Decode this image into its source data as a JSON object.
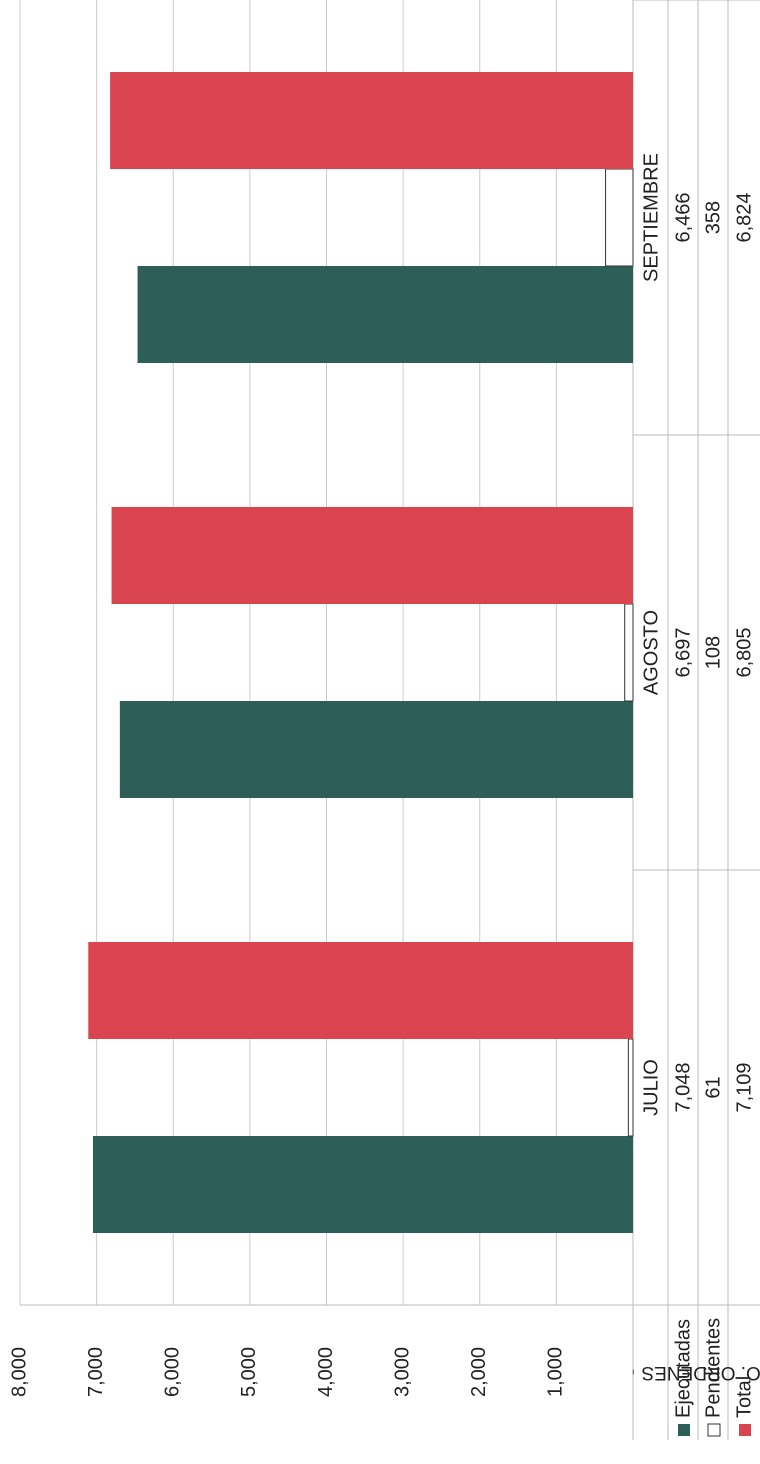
{
  "chart_data": {
    "type": "bar",
    "y_label": "NO. ORDENES",
    "y_label_color": "#d9444f",
    "categories": [
      "JULIO",
      "AGOSTO",
      "SEPTIEMBRE"
    ],
    "series": [
      {
        "name": "Ejecutadas",
        "color": "#2d5f58",
        "values": [
          7048,
          6697,
          6466
        ],
        "value_labels": [
          "7,048",
          "6,697",
          "6,466"
        ]
      },
      {
        "name": "Pendientes",
        "color": "#ffffff",
        "values": [
          61,
          108,
          358
        ]
      },
      {
        "name": "Total",
        "color": "#d9444f",
        "values": [
          7109,
          6805,
          6824
        ],
        "value_labels": [
          "7,109",
          "6,805",
          "6,824"
        ]
      }
    ],
    "ylim": [
      0,
      8000
    ],
    "yticks": [
      {
        "value": 0,
        "label": "-"
      },
      {
        "value": 1000,
        "label": "1,000"
      },
      {
        "value": 2000,
        "label": "2,000"
      },
      {
        "value": 3000,
        "label": "3,000"
      },
      {
        "value": 4000,
        "label": "4,000"
      },
      {
        "value": 5000,
        "label": "5,000"
      },
      {
        "value": 6000,
        "label": "6,000"
      },
      {
        "value": 7000,
        "label": "7,000"
      },
      {
        "value": 8000,
        "label": "8,000"
      }
    ],
    "grid": true
  }
}
